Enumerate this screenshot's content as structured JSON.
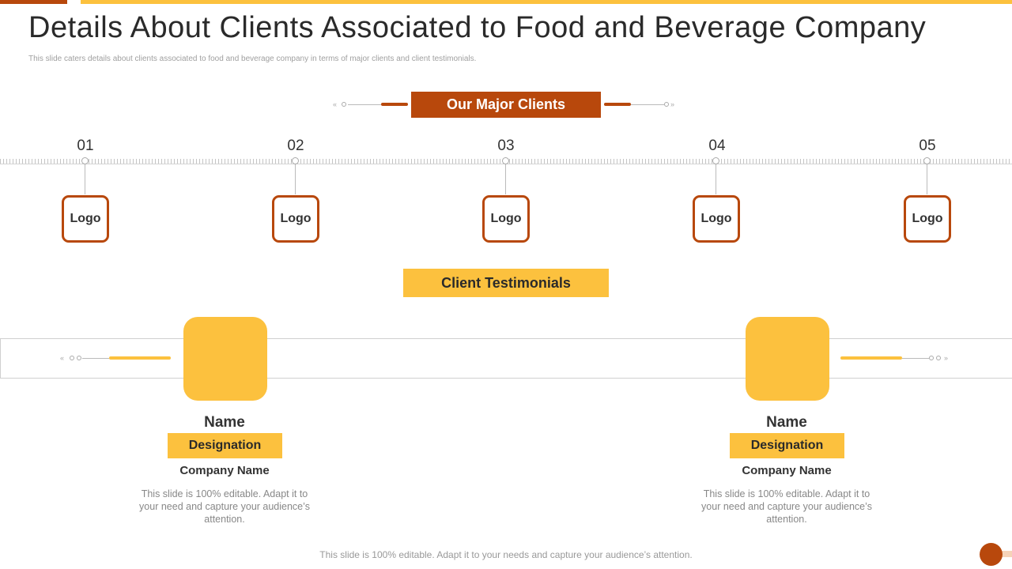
{
  "title": "Details About Clients Associated to Food and Beverage Company",
  "subtitle": "This slide caters details about clients associated to food and beverage company in terms of major clients and client testimonials.",
  "major_clients": {
    "heading": "Our Major Clients",
    "items": [
      {
        "number": "01",
        "logo": "Logo"
      },
      {
        "number": "02",
        "logo": "Logo"
      },
      {
        "number": "03",
        "logo": "Logo"
      },
      {
        "number": "04",
        "logo": "Logo"
      },
      {
        "number": "05",
        "logo": "Logo"
      }
    ]
  },
  "testimonials": {
    "heading": "Client Testimonials",
    "items": [
      {
        "name": "Name",
        "designation": "Designation",
        "company": "Company Name",
        "text": "This slide is 100% editable. Adapt it to your need and capture your audience’s attention."
      },
      {
        "name": "Name",
        "designation": "Designation",
        "company": "Company Name",
        "text": "This slide is 100% editable. Adapt it to your need and capture your audience’s attention."
      }
    ]
  },
  "footer": "This slide is 100% editable. Adapt it to your needs and capture your audience’s attention.",
  "colors": {
    "accent_dark": "#b8480c",
    "accent_yellow": "#fcc13e"
  }
}
